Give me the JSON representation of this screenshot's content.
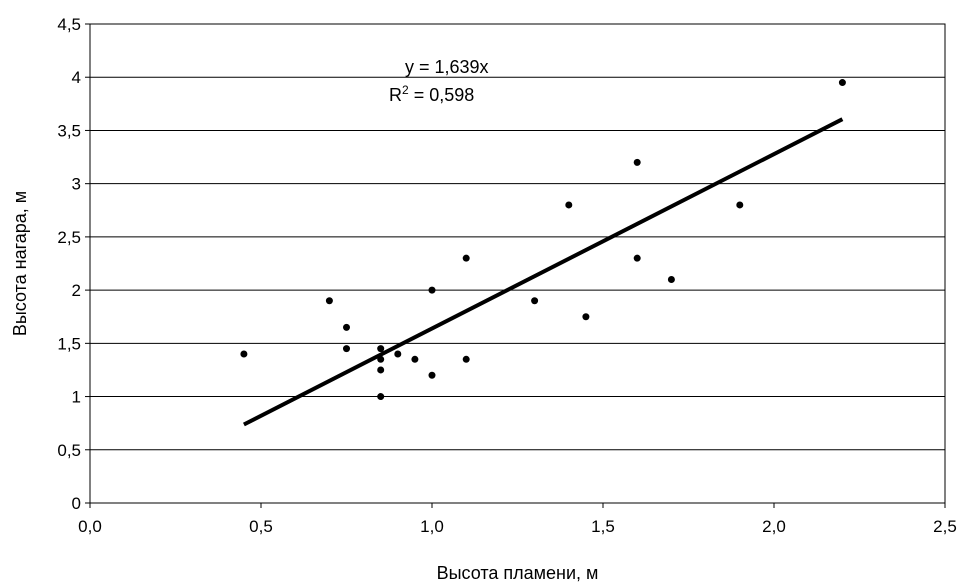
{
  "chart_data": {
    "type": "scatter",
    "title": "",
    "xlabel": "Высота пламени, м",
    "ylabel": "Высота нагара, м",
    "xlim": [
      0,
      2.5
    ],
    "ylim": [
      0,
      4.5
    ],
    "x_ticks": [
      0,
      0.5,
      1.0,
      1.5,
      2.0,
      2.5
    ],
    "x_tick_labels": [
      "0,0",
      "0,5",
      "1,0",
      "1,5",
      "2,0",
      "2,5"
    ],
    "y_ticks": [
      0,
      0.5,
      1,
      1.5,
      2,
      2.5,
      3,
      3.5,
      4,
      4.5
    ],
    "y_tick_labels": [
      "0",
      "0,5",
      "1",
      "1,5",
      "2",
      "2,5",
      "3",
      "3,5",
      "4",
      "4,5"
    ],
    "grid": "horizontal",
    "legend": "none",
    "series": [
      {
        "type": "scatter",
        "points": [
          {
            "x": 0.45,
            "y": 1.4
          },
          {
            "x": 0.7,
            "y": 1.9
          },
          {
            "x": 0.75,
            "y": 1.65
          },
          {
            "x": 0.75,
            "y": 1.45
          },
          {
            "x": 0.85,
            "y": 1.45
          },
          {
            "x": 0.85,
            "y": 1.35
          },
          {
            "x": 0.85,
            "y": 1.25
          },
          {
            "x": 0.85,
            "y": 1.0
          },
          {
            "x": 0.9,
            "y": 1.4
          },
          {
            "x": 0.95,
            "y": 1.35
          },
          {
            "x": 1.0,
            "y": 2.0
          },
          {
            "x": 1.0,
            "y": 1.2
          },
          {
            "x": 1.1,
            "y": 2.3
          },
          {
            "x": 1.1,
            "y": 1.35
          },
          {
            "x": 1.3,
            "y": 1.9
          },
          {
            "x": 1.4,
            "y": 2.8
          },
          {
            "x": 1.45,
            "y": 1.75
          },
          {
            "x": 1.6,
            "y": 3.2
          },
          {
            "x": 1.6,
            "y": 2.3
          },
          {
            "x": 1.7,
            "y": 2.1
          },
          {
            "x": 1.9,
            "y": 2.8
          },
          {
            "x": 2.2,
            "y": 3.95
          }
        ],
        "color": "#000000"
      }
    ],
    "trendline": {
      "slope": 1.639,
      "x_range": [
        0.45,
        2.2
      ],
      "color": "#000000",
      "equation_label": "y = 1,639x",
      "r2_prefix": "R",
      "r2_exponent": "2",
      "r2_value": " = 0,598"
    }
  }
}
